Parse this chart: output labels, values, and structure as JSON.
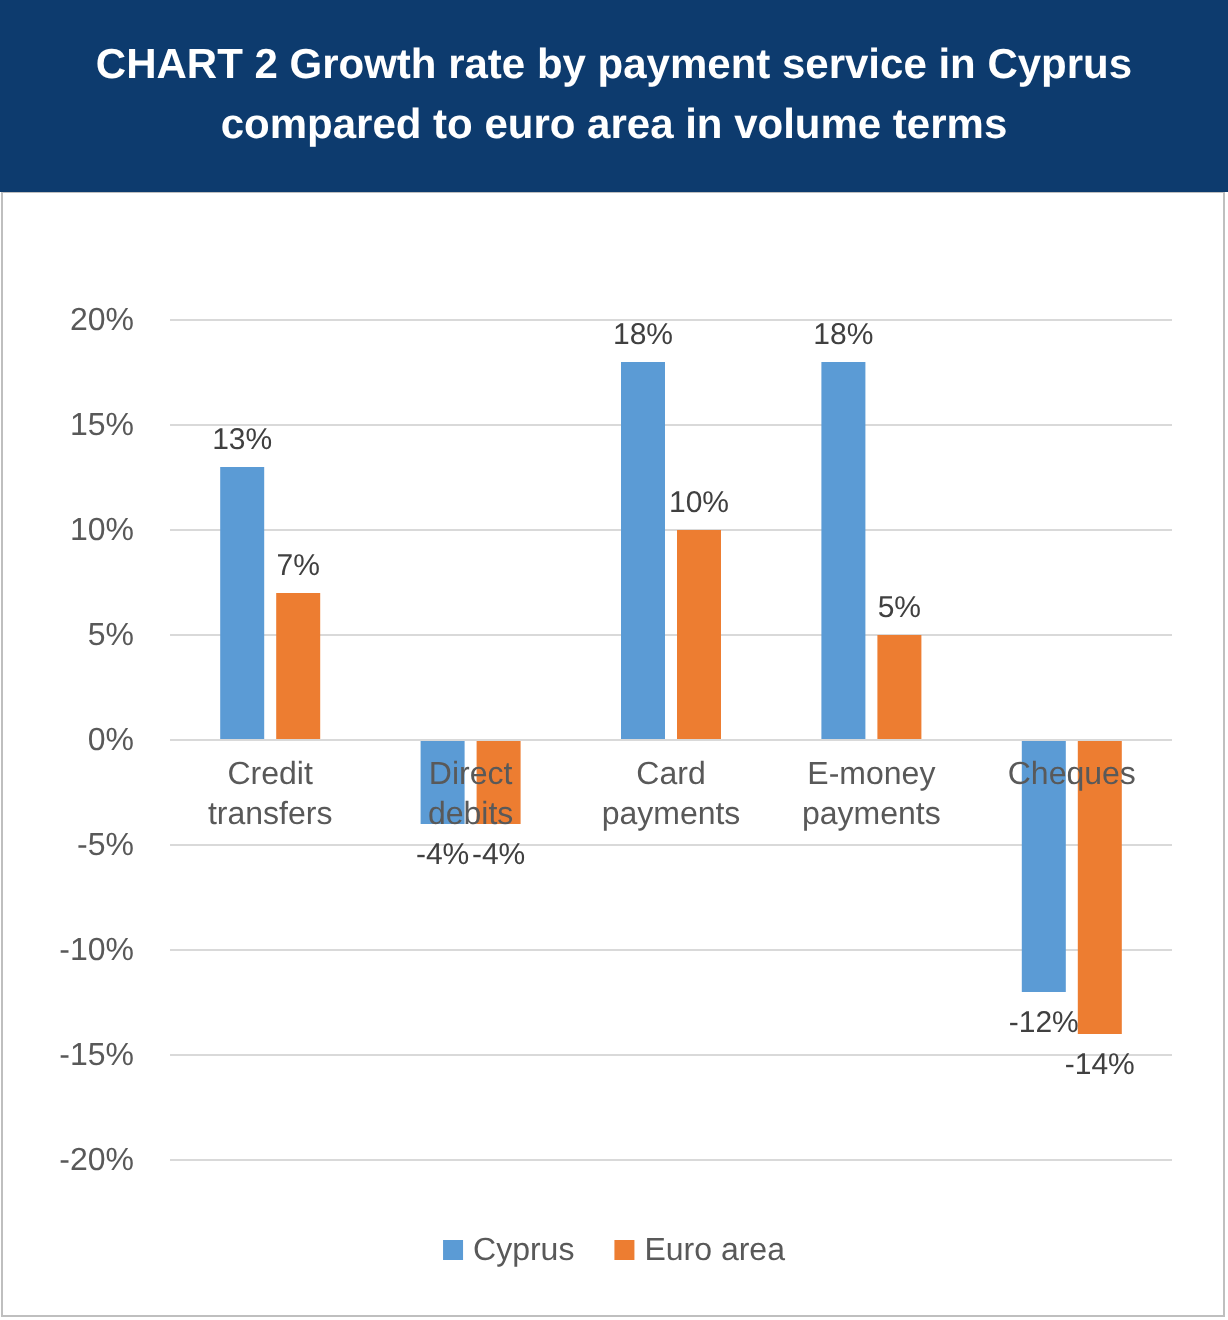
{
  "chart_data": {
    "type": "bar",
    "title": "CHART 2  Growth rate by payment service in Cyprus compared to euro area in volume terms",
    "categories": [
      "Credit transfers",
      "Direct debits",
      "Card payments",
      "E-money payments",
      "Cheques"
    ],
    "series": [
      {
        "name": "Cyprus",
        "color": "#5b9bd5",
        "values": [
          13,
          -4,
          18,
          18,
          -12
        ],
        "value_labels": [
          "13%",
          "-4%",
          "18%",
          "18%",
          "-12%"
        ]
      },
      {
        "name": "Euro area",
        "color": "#ed7d31",
        "values": [
          7,
          -4,
          10,
          5,
          -14
        ],
        "value_labels": [
          "7%",
          "-4%",
          "10%",
          "5%",
          "-14%"
        ]
      }
    ],
    "ylim": [
      -20,
      20
    ],
    "yticks": [
      {
        "value": -20,
        "label": "-20%"
      },
      {
        "value": -15,
        "label": "-15%"
      },
      {
        "value": -10,
        "label": "-10%"
      },
      {
        "value": -5,
        "label": "-5%"
      },
      {
        "value": 0,
        "label": "0%"
      },
      {
        "value": 5,
        "label": "5%"
      },
      {
        "value": 10,
        "label": "10%"
      },
      {
        "value": 15,
        "label": "15%"
      },
      {
        "value": 20,
        "label": "20%"
      }
    ],
    "grid": "y",
    "legend": "bottom"
  }
}
